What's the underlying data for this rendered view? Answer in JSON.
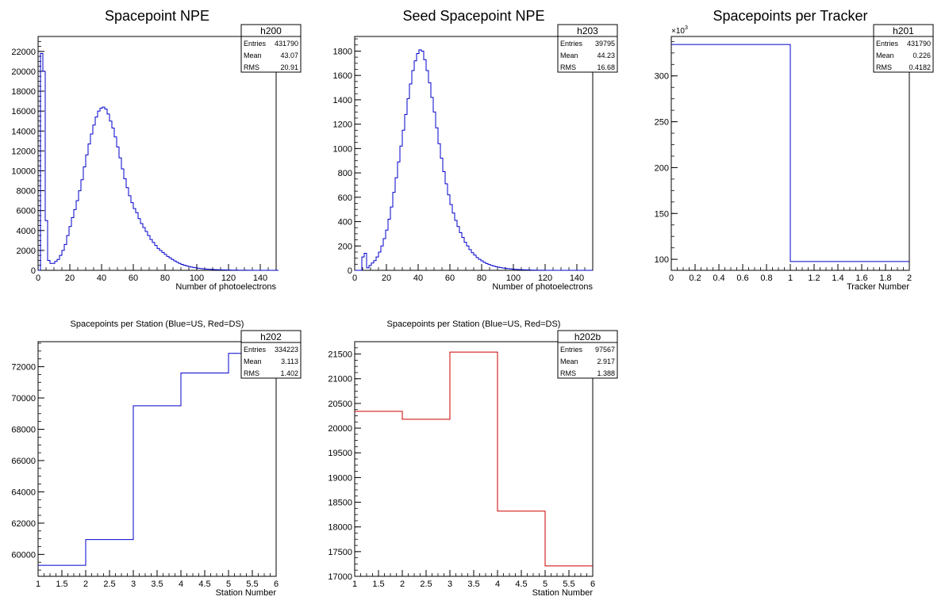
{
  "chart_data": [
    {
      "id": "p200",
      "type": "histogram",
      "title": "Spacepoint NPE",
      "xlabel": "Number of photoelectrons",
      "ylabel": "",
      "xlim": [
        0,
        150
      ],
      "ylim": [
        0,
        23500
      ],
      "xticks": [
        "0",
        "20",
        "40",
        "60",
        "80",
        "100",
        "120",
        "140"
      ],
      "yticks": [
        "0",
        "2000",
        "4000",
        "6000",
        "8000",
        "10000",
        "12000",
        "14000",
        "16000",
        "18000",
        "20000",
        "22000"
      ],
      "line_color": "#0000cc",
      "stats": {
        "name": "h200",
        "entries": "431790",
        "mean": "43.07",
        "rms": "20.91"
      },
      "bin_width": 1.5,
      "values": [
        0,
        21800,
        20000,
        5000,
        1000,
        700,
        700,
        900,
        1100,
        1500,
        2000,
        2600,
        3500,
        4400,
        5300,
        6100,
        7000,
        8000,
        9100,
        10400,
        11600,
        12700,
        13700,
        14600,
        15400,
        16000,
        16300,
        16400,
        16200,
        15700,
        15000,
        14300,
        13400,
        12400,
        11300,
        10200,
        9200,
        8300,
        7500,
        6800,
        6200,
        5800,
        5200,
        4700,
        4300,
        3900,
        3500,
        3100,
        2800,
        2500,
        2200,
        2000,
        1800,
        1600,
        1400,
        1250,
        1100,
        950,
        820,
        700,
        600,
        520,
        450,
        390,
        330,
        290,
        250,
        210,
        180,
        150,
        130,
        110,
        95,
        80,
        70,
        60,
        50,
        40,
        35,
        30,
        25,
        20,
        18,
        15,
        12,
        10,
        8,
        6,
        5,
        4,
        3,
        2,
        0,
        0,
        0,
        0,
        0,
        0,
        0,
        0,
        0
      ]
    },
    {
      "id": "p203",
      "type": "histogram",
      "title": "Seed Spacepoint NPE",
      "xlabel": "Number of photoelectrons",
      "ylabel": "",
      "xlim": [
        0,
        150
      ],
      "ylim": [
        0,
        1920
      ],
      "xticks": [
        "0",
        "20",
        "40",
        "60",
        "80",
        "100",
        "120",
        "140"
      ],
      "yticks": [
        "0",
        "200",
        "400",
        "600",
        "800",
        "1000",
        "1200",
        "1400",
        "1600",
        "1800"
      ],
      "line_color": "#0000cc",
      "stats": {
        "name": "h203",
        "entries": "39795",
        "mean": "44.23",
        "rms": "16.68"
      },
      "bin_width": 1.5,
      "values": [
        0,
        0,
        0,
        110,
        140,
        20,
        40,
        60,
        80,
        110,
        150,
        200,
        260,
        330,
        420,
        520,
        640,
        760,
        890,
        1020,
        1150,
        1280,
        1410,
        1530,
        1640,
        1720,
        1780,
        1810,
        1800,
        1730,
        1640,
        1540,
        1420,
        1300,
        1170,
        1040,
        920,
        810,
        710,
        620,
        540,
        470,
        410,
        360,
        310,
        270,
        230,
        200,
        170,
        145,
        125,
        105,
        90,
        78,
        66,
        56,
        48,
        41,
        35,
        30,
        26,
        22,
        19,
        16,
        14,
        12,
        10,
        8,
        7,
        6,
        5,
        4,
        3,
        3,
        2,
        2,
        1,
        1,
        1,
        1,
        0,
        0,
        0,
        0,
        0,
        0,
        0,
        0,
        0,
        0,
        0,
        0,
        0,
        0,
        0,
        0,
        0,
        0,
        0,
        0
      ]
    },
    {
      "id": "p201",
      "type": "histogram",
      "title": "Spacepoints per Tracker",
      "xlabel": "Tracker Number",
      "ylabel": "",
      "xlim": [
        0,
        2
      ],
      "ylim": [
        88,
        343
      ],
      "exponent_label": "×10",
      "exponent_sup": "3",
      "xticks": [
        "0",
        "0.2",
        "0.4",
        "0.6",
        "0.8",
        "1",
        "1.2",
        "1.4",
        "1.6",
        "1.8",
        "2"
      ],
      "yticks": [
        "100",
        "150",
        "200",
        "250",
        "300"
      ],
      "line_color": "#0000cc",
      "stats": {
        "name": "h201",
        "entries": "431790",
        "mean": "0.226",
        "rms": "0.4182"
      },
      "bin_edges": [
        0,
        1,
        2
      ],
      "values": [
        334.2,
        97.6
      ]
    },
    {
      "id": "p202",
      "type": "histogram",
      "title": "Spacepoints per Station (Blue=US, Red=DS)",
      "xlabel": "Station Number",
      "ylabel": "",
      "xlim": [
        1,
        6
      ],
      "ylim": [
        58600,
        73600
      ],
      "xticks": [
        "1",
        "1.5",
        "2",
        "2.5",
        "3",
        "3.5",
        "4",
        "4.5",
        "5",
        "5.5",
        "6"
      ],
      "yticks": [
        "60000",
        "62000",
        "64000",
        "66000",
        "68000",
        "70000",
        "72000"
      ],
      "line_color": "#0000cc",
      "stats": {
        "name": "h202",
        "entries": "334223",
        "mean": "3.113",
        "rms": "1.402"
      },
      "bin_edges": [
        1,
        2,
        3,
        4,
        5,
        6
      ],
      "values": [
        59300,
        60950,
        69500,
        71600,
        72850
      ]
    },
    {
      "id": "p202b",
      "type": "histogram",
      "title": "Spacepoints per Station (Blue=US, Red=DS)",
      "xlabel": "Station Number",
      "ylabel": "",
      "xlim": [
        1,
        6
      ],
      "ylim": [
        17000,
        21750
      ],
      "xticks": [
        "1",
        "1.5",
        "2",
        "2.5",
        "3",
        "3.5",
        "4",
        "4.5",
        "5",
        "5.5",
        "6"
      ],
      "yticks": [
        "17000",
        "17500",
        "18000",
        "18500",
        "19000",
        "19500",
        "20000",
        "20500",
        "21000",
        "21500"
      ],
      "line_color": "#cc0000",
      "stats": {
        "name": "h202b",
        "entries": "97567",
        "mean": "2.917",
        "rms": "1.388"
      },
      "bin_edges": [
        1,
        2,
        3,
        4,
        5,
        6
      ],
      "values": [
        20340,
        20180,
        21540,
        18320,
        17210
      ]
    }
  ],
  "labels": {
    "entries": "Entries",
    "mean": "Mean",
    "rms": "RMS"
  }
}
